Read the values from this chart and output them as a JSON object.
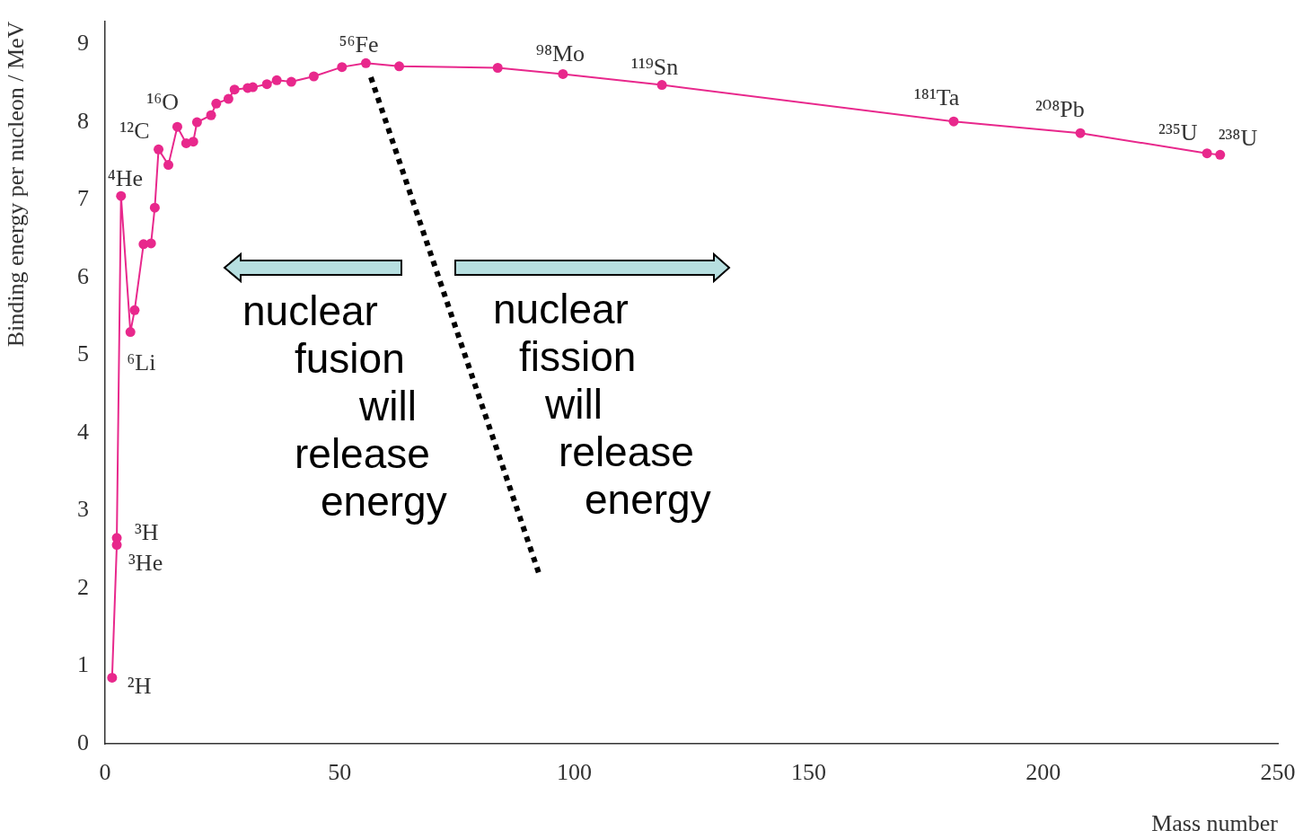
{
  "chart_data": {
    "type": "line",
    "xlabel": "Mass number",
    "ylabel": "Binding energy per nucleon / MeV",
    "x": [
      1.5,
      2.5,
      2.5,
      3.4,
      5.4,
      6.3,
      8.2,
      9.8,
      10.6,
      11.4,
      13.5,
      15.4,
      17.3,
      18.8,
      19.6,
      22.6,
      23.7,
      26.3,
      27.6,
      30.4,
      31.5,
      34.5,
      36.6,
      39.7,
      44.5,
      50.5,
      55.6,
      62.7,
      83.7,
      97.6,
      118.7,
      180.9,
      207.9,
      234.9,
      237.7
    ],
    "series": [
      {
        "color": "#e8288c",
        "values": [
          0.85,
          2.56,
          2.65,
          7.05,
          5.3,
          5.58,
          6.43,
          6.44,
          6.9,
          7.65,
          7.45,
          7.94,
          7.73,
          7.75,
          8.0,
          8.09,
          8.24,
          8.3,
          8.42,
          8.44,
          8.45,
          8.49,
          8.54,
          8.52,
          8.59,
          8.71,
          8.76,
          8.72,
          8.7,
          8.62,
          8.48,
          8.01,
          7.86,
          7.6,
          7.58
        ]
      }
    ],
    "xlim": [
      0,
      250
    ],
    "xticks": [
      0,
      50,
      100,
      150,
      200,
      250
    ],
    "ylim": [
      0,
      9.3
    ],
    "yticks": [
      0,
      1,
      2,
      3,
      4,
      5,
      6,
      7,
      8,
      9
    ],
    "grid": false,
    "legend": false,
    "marker": "circle",
    "line_style": "solid",
    "annotations": [
      {
        "text": "²H",
        "x": 1.5,
        "y": 0.85
      },
      {
        "text": "³He",
        "x": 2.5,
        "y": 2.56
      },
      {
        "text": "³H",
        "x": 2.5,
        "y": 2.65
      },
      {
        "text": "⁴He",
        "x": 3.4,
        "y": 7.05
      },
      {
        "text": "⁶Li",
        "x": 5.4,
        "y": 5.3
      },
      {
        "text": "¹²C",
        "x": 11.4,
        "y": 7.65
      },
      {
        "text": "¹⁶O",
        "x": 15.4,
        "y": 7.94
      },
      {
        "text": "⁵⁶Fe",
        "x": 55.6,
        "y": 8.76
      },
      {
        "text": "⁹⁸Mo",
        "x": 97.6,
        "y": 8.62
      },
      {
        "text": "¹¹⁹Sn",
        "x": 118.7,
        "y": 8.48
      },
      {
        "text": "¹⁸¹Ta",
        "x": 180.9,
        "y": 8.01
      },
      {
        "text": "²⁰⁸Pb",
        "x": 207.9,
        "y": 7.86
      },
      {
        "text": "²³⁵U",
        "x": 234.9,
        "y": 7.6
      },
      {
        "text": "²³⁸U",
        "x": 237.7,
        "y": 7.58
      },
      "nuclear\nfusion\nwill\nrelease\nenergy",
      "nuclear\nfission\nwill\nrelease\nenergy"
    ]
  }
}
